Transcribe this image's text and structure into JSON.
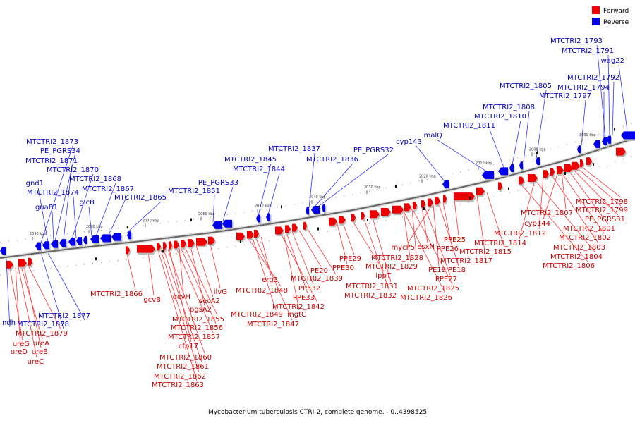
{
  "legend": {
    "forward_label": "Forward",
    "reverse_label": "Reverse",
    "forward_color": "#ee0000",
    "reverse_color": "#0000ee"
  },
  "caption": "Mycobacterium tuberculosis CTRI-2, complete genome. - 0..4398525",
  "ticks": [
    "1990 kbp",
    "2000 kbp",
    "2010 kbp",
    "2020 kbp",
    "2030 kbp",
    "2040 kbp",
    "2050 kbp",
    "2060 kbp",
    "2070 kbp",
    "2080 kbp",
    "2090 kbp"
  ],
  "reverse_labels": [
    "MTCTRI2_1793",
    "MTCTRI2_1791",
    "wag22",
    "MTCTRI2_1792",
    "MTCTRI2_1794",
    "MTCTRI2_1805",
    "MTCTRI2_1797",
    "MTCTRI2_1808",
    "MTCTRI2_1810",
    "MTCTRI2_1811",
    "malQ",
    "cyp143",
    "MTCTRI2_1837",
    "PE_PGRS32",
    "MTCTRI2_1836",
    "MTCTRI2_1845",
    "MTCTRI2_1844",
    "PE_PGRS33",
    "MTCTRI2_1851",
    "MTCTRI2_1873",
    "PE_PGRS34",
    "MTCTRI2_1871",
    "MTCTRI2_1870",
    "gnd1",
    "MTCTRI2_1868",
    "MTCTRI2_1867",
    "MTCTRI2_1874",
    "glcB",
    "MTCTRI2_1865",
    "guaB1",
    "ndh",
    "MTCTRI2_1877",
    "MTCTRI2_1878"
  ],
  "forward_labels": [
    "MTCTRI2_1798",
    "MTCTRI2_1799",
    "PE_PGRS31",
    "MTCTRI2_1807",
    "MTCTRI2_1801",
    "cyp144",
    "MTCTRI2_1802",
    "MTCTRI2_1812",
    "MTCTRI2_1803",
    "MTCTRI2_1814",
    "MTCTRI2_1804",
    "MTCTRI2_1806",
    "MTCTRI2_1815",
    "PPE25",
    "MTCTRI2_1817",
    "PPE26",
    "mycP5",
    "esxN",
    "PE18",
    "MTCTRI2_1828",
    "PE19",
    "MTCTRI2_1829",
    "PPE27",
    "MTCTRI2_1825",
    "MTCTRI2_1826",
    "PPE29",
    "PPE30",
    "lppT",
    "MTCTRI2_1831",
    "MTCTRI2_1832",
    "PE20",
    "erg3",
    "MTCTRI2_1839",
    "PPE32",
    "MTCTRI2_1848",
    "PPE33",
    "MTCTRI2_1842",
    "MTCTRI2_1849",
    "mgtC",
    "MTCTRI2_1847",
    "MTCTRI2_1866",
    "gcvB",
    "gcvH",
    "ilvG",
    "secA2",
    "pgsA2",
    "MTCTRI2_1855",
    "MTCTRI2_1856",
    "MTCTRI2_1857",
    "cfp17",
    "MTCTRI2_1860",
    "MTCTRI2_1861",
    "MTCTRI2_1862",
    "MTCTRI2_1863",
    "MTCTRI2_1879",
    "ureG",
    "ureA",
    "ureD",
    "ureB",
    "ureC"
  ]
}
